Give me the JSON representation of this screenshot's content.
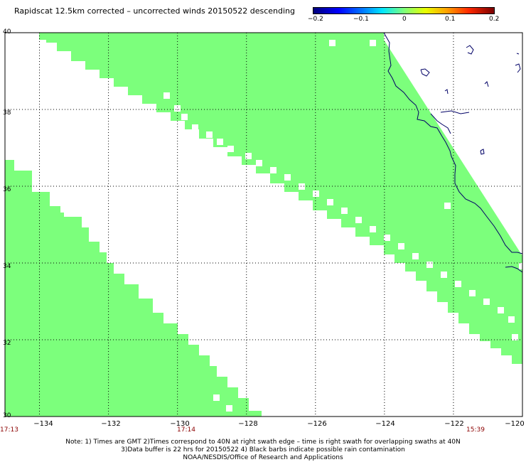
{
  "title": "Rapidscat 12.5km corrected – uncorrected winds 20150522 descending",
  "colorbar": {
    "tick_labels": [
      "−0.2",
      "−0.1",
      "0",
      "0.1",
      "0.2"
    ],
    "colors": [
      "#00007a",
      "#0000ff",
      "#00e5ff",
      "#7cff7c",
      "#e8ff00",
      "#ffa000",
      "#ff2800",
      "#7a0000"
    ]
  },
  "map": {
    "lon_range": [
      -135,
      -120
    ],
    "lat_range": [
      30,
      40
    ],
    "swath_color": "#7cff7c",
    "coastline_color": "#000066",
    "grid_style": "dotted",
    "lat_labels": [
      "40",
      "38",
      "36",
      "34",
      "32",
      "30"
    ],
    "lon_labels": [
      "−134",
      "−132",
      "−130",
      "−128",
      "−126",
      "−124",
      "−122",
      "−120"
    ],
    "time_labels": [
      "17:13",
      "17:14",
      "15:39"
    ]
  },
  "notes": [
    "Note: 1) Times are GMT 2)Times correspond to 40N at right swath edge – time is right swath for overlapping swaths at 40N",
    "3)Data buffer is 22 hrs for 20150522 4) Black barbs indicate possible rain contamination",
    "NOAA/NESDIS/Office of Research and Applications"
  ]
}
